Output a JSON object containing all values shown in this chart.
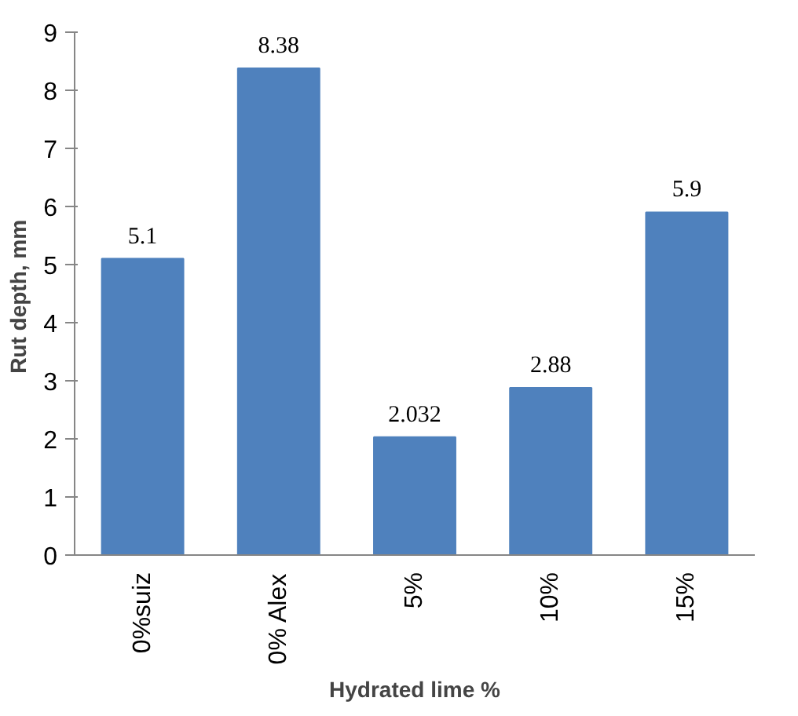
{
  "chart_data": {
    "type": "bar",
    "categories": [
      "0%suiz",
      "0% Alex",
      "5%",
      "10%",
      "15%"
    ],
    "values": [
      5.1,
      8.38,
      2.032,
      2.88,
      5.9
    ],
    "color": "#4f81bd",
    "xlabel": "Hydrated lime %",
    "ylabel": "Rut  depth, mm",
    "ylim": [
      0,
      9
    ],
    "yticks": [
      0,
      1,
      2,
      3,
      4,
      5,
      6,
      7,
      8,
      9
    ],
    "grid": false,
    "data_labels": true
  }
}
